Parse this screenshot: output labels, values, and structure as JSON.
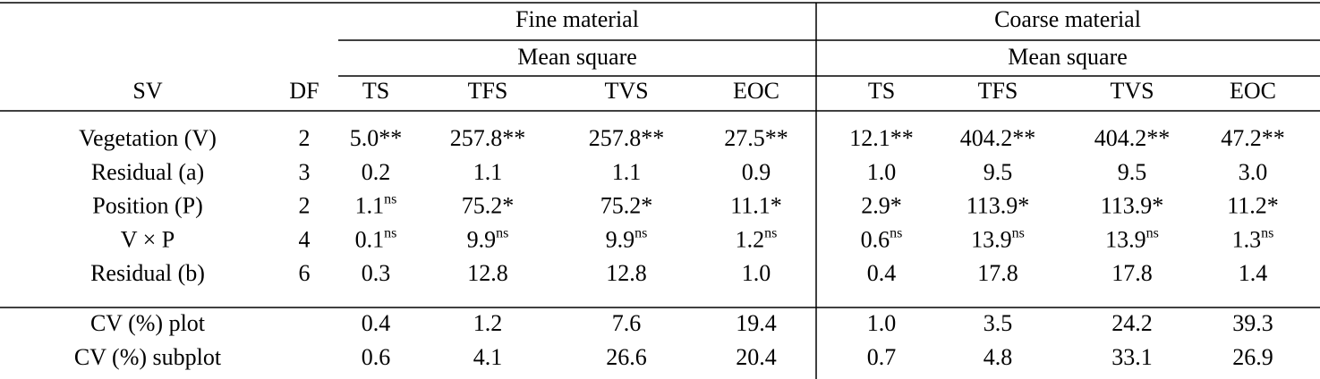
{
  "header": {
    "groups": [
      "Fine material",
      "Coarse material"
    ],
    "subgroups": [
      "Mean square",
      "Mean square"
    ],
    "columns": [
      "SV",
      "DF",
      "TS",
      "TFS",
      "TVS",
      "EOC",
      "TS",
      "TFS",
      "TVS",
      "EOC"
    ]
  },
  "rows": [
    {
      "sv": "Vegetation (V)",
      "df": "2",
      "cells": [
        "5.0**",
        "257.8**",
        "257.8**",
        "27.5**",
        "12.1**",
        "404.2**",
        "404.2**",
        "47.2**"
      ]
    },
    {
      "sv": "Residual (a)",
      "df": "3",
      "cells": [
        "0.2",
        "1.1",
        "1.1",
        "0.9",
        "1.0",
        "9.5",
        "9.5",
        "3.0"
      ]
    },
    {
      "sv": "Position (P)",
      "df": "2",
      "cells": [
        {
          "text": "1.1",
          "sup": "ns"
        },
        "75.2*",
        "75.2*",
        "11.1*",
        "2.9*",
        "113.9*",
        "113.9*",
        "11.2*"
      ]
    },
    {
      "sv": "V × P",
      "df": "4",
      "cells": [
        {
          "text": "0.1",
          "sup": "ns"
        },
        {
          "text": "9.9",
          "sup": "ns"
        },
        {
          "text": "9.9",
          "sup": "ns"
        },
        {
          "text": "1.2",
          "sup": "ns"
        },
        {
          "text": "0.6",
          "sup": "ns"
        },
        {
          "text": "13.9",
          "sup": "ns"
        },
        {
          "text": "13.9",
          "sup": "ns"
        },
        {
          "text": "1.3",
          "sup": "ns"
        }
      ]
    },
    {
      "sv": "Residual (b)",
      "df": "6",
      "cells": [
        "0.3",
        "12.8",
        "12.8",
        "1.0",
        "0.4",
        "17.8",
        "17.8",
        "1.4"
      ]
    }
  ],
  "cv_rows": [
    {
      "sv": "CV (%) plot",
      "cells": [
        "0.4",
        "1.2",
        "7.6",
        "19.4",
        "1.0",
        "3.5",
        "24.2",
        "39.3"
      ]
    },
    {
      "sv": "CV (%) subplot",
      "cells": [
        "0.6",
        "4.1",
        "26.6",
        "20.4",
        "0.7",
        "4.8",
        "33.1",
        "26.9"
      ]
    }
  ]
}
